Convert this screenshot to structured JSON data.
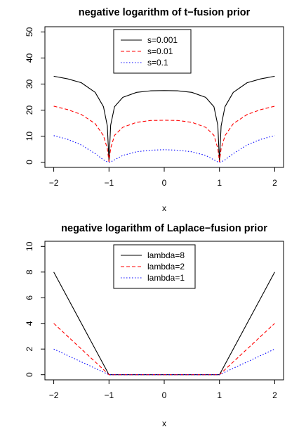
{
  "chart_data": [
    {
      "type": "line",
      "title": "negative logarithm of t−fusion prior",
      "xlabel": "x",
      "ylabel": "",
      "xlim": [
        -2,
        2
      ],
      "ylim": [
        0,
        50
      ],
      "x_ticks": [
        "−2",
        "−1",
        "0",
        "1",
        "2"
      ],
      "y_ticks": [
        "0",
        "10",
        "20",
        "30",
        "40",
        "50"
      ],
      "legend": "top-left",
      "series": [
        {
          "name": "s=0.001",
          "color": "#000000",
          "dash": "solid",
          "x": [
            -2,
            -1.75,
            -1.5,
            -1.25,
            -1.1,
            -1.03,
            -1.0,
            -0.97,
            -0.9,
            -0.75,
            -0.5,
            -0.25,
            0,
            0.25,
            0.5,
            0.75,
            0.9,
            0.97,
            1.0,
            1.03,
            1.1,
            1.25,
            1.5,
            1.75,
            2
          ],
          "values": [
            33.0,
            32.0,
            30.5,
            26.8,
            21.3,
            13.9,
            0.3,
            14.2,
            21.3,
            24.9,
            26.8,
            27.4,
            27.5,
            27.4,
            26.8,
            24.9,
            21.3,
            14.2,
            0.3,
            13.9,
            21.3,
            26.8,
            30.5,
            32.0,
            33.0
          ]
        },
        {
          "name": "s=0.01",
          "color": "#ff0000",
          "dash": "dashed",
          "x": [
            -2,
            -1.75,
            -1.5,
            -1.25,
            -1.1,
            -1.03,
            -1.0,
            -0.97,
            -0.9,
            -0.75,
            -0.5,
            -0.25,
            0,
            0.25,
            0.5,
            0.75,
            0.9,
            0.97,
            1.0,
            1.03,
            1.1,
            1.25,
            1.5,
            1.75,
            2
          ],
          "values": [
            21.5,
            20.2,
            18.3,
            14.8,
            10.2,
            5.2,
            0.2,
            5.3,
            10.3,
            13.4,
            15.3,
            16.0,
            16.1,
            16.0,
            15.3,
            13.4,
            10.3,
            5.3,
            0.2,
            5.2,
            10.2,
            14.8,
            18.3,
            20.2,
            21.5
          ]
        },
        {
          "name": "s=0.1",
          "color": "#0000ff",
          "dash": "dotted",
          "x": [
            -2,
            -1.75,
            -1.5,
            -1.25,
            -1.1,
            -1.03,
            -1.0,
            -0.97,
            -0.9,
            -0.75,
            -0.5,
            -0.25,
            0,
            0.25,
            0.5,
            0.75,
            0.9,
            0.97,
            1.0,
            1.03,
            1.1,
            1.25,
            1.5,
            1.75,
            2
          ],
          "values": [
            10.2,
            8.8,
            6.6,
            3.3,
            0.9,
            0.1,
            0.0,
            0.1,
            0.9,
            2.6,
            4.0,
            4.6,
            4.8,
            4.6,
            4.0,
            2.6,
            0.9,
            0.1,
            0.0,
            0.1,
            0.9,
            3.3,
            6.6,
            8.8,
            10.2
          ]
        }
      ]
    },
    {
      "type": "line",
      "title": "negative logarithm of Laplace−fusion prior",
      "xlabel": "x",
      "ylabel": "",
      "xlim": [
        -2,
        2
      ],
      "ylim": [
        0,
        10
      ],
      "x_ticks": [
        "−2",
        "−1",
        "0",
        "1",
        "2"
      ],
      "y_ticks": [
        "0",
        "2",
        "4",
        "6",
        "8",
        "10"
      ],
      "legend": "top-left",
      "series": [
        {
          "name": "lambda=8",
          "color": "#000000",
          "dash": "solid",
          "x": [
            -2,
            -1,
            1,
            2
          ],
          "values": [
            8,
            0,
            0,
            8
          ]
        },
        {
          "name": "lambda=2",
          "color": "#ff0000",
          "dash": "dashed",
          "x": [
            -2,
            -1,
            1,
            2
          ],
          "values": [
            4,
            0,
            0,
            4
          ]
        },
        {
          "name": "lambda=1",
          "color": "#0000ff",
          "dash": "dotted",
          "x": [
            -2,
            -1,
            1,
            2
          ],
          "values": [
            2,
            0,
            0,
            2
          ]
        }
      ]
    }
  ]
}
